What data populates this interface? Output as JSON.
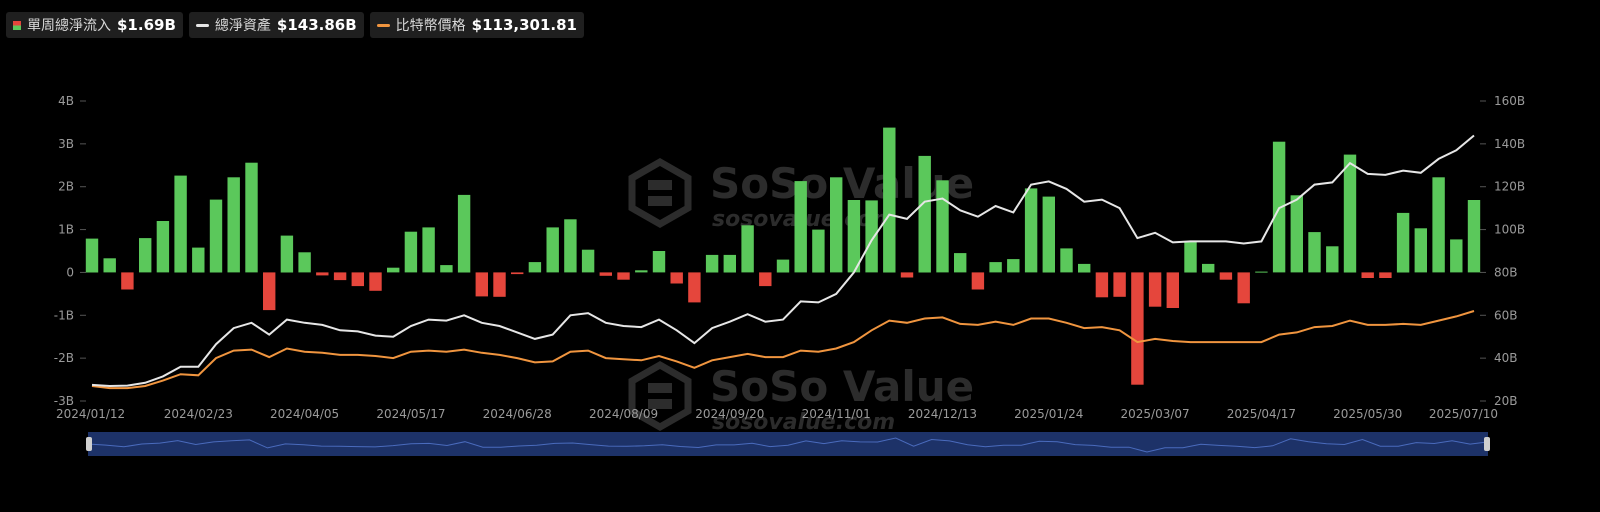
{
  "legend": {
    "flow": {
      "name": "單周總淨流入",
      "value": "$1.69B"
    },
    "assets": {
      "name": "總淨資產",
      "value": "$143.86B"
    },
    "btc": {
      "name": "比特幣價格",
      "value": "$113,301.81"
    }
  },
  "watermark": {
    "brand": "SoSo Value",
    "site": "sosovalue.com"
  },
  "colors": {
    "positive": "#5bc85b",
    "negative": "#e5463c",
    "assets_line": "#e6e6e6",
    "btc_line": "#f0953f",
    "navigator": "#1d3268",
    "background": "#000000"
  },
  "chart_data": {
    "type": "bar",
    "x_ticks": [
      "2024/01/12",
      "2024/02/23",
      "2024/04/05",
      "2024/05/17",
      "2024/06/28",
      "2024/08/09",
      "2024/09/20",
      "2024/11/01",
      "2024/12/13",
      "2025/01/24",
      "2025/03/07",
      "2025/04/17",
      "2025/05/30",
      "2025/07/10"
    ],
    "y_left": {
      "ticks": [
        "4B",
        "3B",
        "2B",
        "1B",
        "0",
        "-1B",
        "-2B",
        "-3B"
      ],
      "range": [
        -3,
        4
      ],
      "unit": "B"
    },
    "y_right": {
      "ticks": [
        "160B",
        "140B",
        "120B",
        "100B",
        "80B",
        "60B",
        "40B",
        "20B"
      ],
      "range": [
        20,
        160
      ],
      "unit": "B"
    },
    "series": [
      {
        "key": "weekly_net_inflow",
        "name": "單周總淨流入",
        "type": "bar",
        "values": [
          0.79,
          0.33,
          -0.4,
          0.8,
          1.2,
          2.26,
          0.58,
          1.7,
          2.22,
          2.56,
          -0.88,
          0.86,
          0.47,
          -0.07,
          -0.18,
          -0.32,
          -0.43,
          0.11,
          0.95,
          1.05,
          0.17,
          1.81,
          -0.56,
          -0.57,
          -0.04,
          0.24,
          1.05,
          1.24,
          0.53,
          -0.08,
          -0.17,
          0.05,
          0.5,
          -0.26,
          -0.7,
          0.41,
          0.41,
          1.1,
          -0.32,
          0.3,
          2.13,
          1.0,
          2.22,
          1.69,
          1.68,
          3.38,
          -0.12,
          2.72,
          2.15,
          0.45,
          -0.4,
          0.24,
          0.31,
          1.96,
          1.77,
          0.56,
          0.2,
          -0.58,
          -0.57,
          -2.62,
          -0.8,
          -0.83,
          0.72,
          0.2,
          -0.17,
          -0.72,
          0.02,
          3.05,
          1.8,
          0.94,
          0.61,
          2.75,
          -0.13,
          -0.13,
          1.39,
          1.03,
          2.22,
          0.77,
          1.69
        ]
      },
      {
        "key": "total_net_assets",
        "name": "總淨資產",
        "type": "line",
        "values": [
          27.5,
          27.0,
          27.2,
          28.5,
          31.5,
          36.0,
          36.0,
          46.5,
          54.0,
          56.5,
          51.0,
          58.0,
          56.5,
          55.5,
          53.0,
          52.5,
          50.5,
          50.0,
          55.0,
          58.0,
          57.5,
          60.0,
          56.5,
          55.0,
          52.0,
          49.0,
          51.0,
          60.0,
          61.0,
          56.5,
          55.0,
          54.5,
          58.0,
          53.0,
          47.0,
          54.0,
          57.0,
          60.5,
          57.0,
          58.0,
          66.5,
          66.0,
          70.0,
          80.0,
          95.0,
          107.0,
          105.0,
          113.0,
          114.5,
          109.0,
          106.0,
          111.0,
          108.0,
          121.0,
          122.5,
          119.0,
          113.0,
          114.0,
          110.0,
          96.0,
          98.5,
          94.0,
          94.5,
          94.5,
          94.5,
          93.5,
          94.5,
          110.0,
          114.0,
          121.0,
          122.0,
          131.0,
          126.0,
          125.5,
          127.5,
          126.5,
          133.0,
          137.0,
          143.9
        ]
      },
      {
        "key": "btc_price",
        "name": "比特幣價格",
        "type": "line",
        "axis": "right",
        "values": [
          27.0,
          26.0,
          26.0,
          27.0,
          29.5,
          32.5,
          32.0,
          40.0,
          43.5,
          44.0,
          40.5,
          44.5,
          43.0,
          42.5,
          41.5,
          41.5,
          41.0,
          40.0,
          43.0,
          43.5,
          43.0,
          44.0,
          42.5,
          41.5,
          40.0,
          38.0,
          38.5,
          43.0,
          43.5,
          40.0,
          39.5,
          39.0,
          41.0,
          38.5,
          35.5,
          39.0,
          40.5,
          42.0,
          40.5,
          40.5,
          43.5,
          43.0,
          44.5,
          47.5,
          53.0,
          57.5,
          56.5,
          58.5,
          59.0,
          56.0,
          55.5,
          57.0,
          55.5,
          58.5,
          58.5,
          56.5,
          54.0,
          54.5,
          53.0,
          47.5,
          49.0,
          48.0,
          47.5,
          47.5,
          47.5,
          47.5,
          47.5,
          51.0,
          52.0,
          54.5,
          55.0,
          57.5,
          55.5,
          55.5,
          56.0,
          55.5,
          57.5,
          59.5,
          62.0
        ]
      }
    ],
    "grid": false
  }
}
